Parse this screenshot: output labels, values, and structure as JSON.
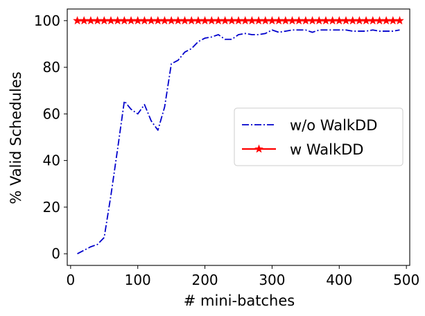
{
  "chart_data": {
    "type": "line",
    "title": "",
    "xlabel": "# mini-batches",
    "ylabel": "% Valid Schedules",
    "xlim": [
      -5,
      505
    ],
    "ylim": [
      -5,
      105
    ],
    "xticks": [
      0,
      100,
      200,
      300,
      400,
      500
    ],
    "yticks": [
      0,
      20,
      40,
      60,
      80,
      100
    ],
    "grid": false,
    "legend_position": "center-right",
    "series": [
      {
        "name": "w/o WalkDD",
        "color": "#0000cc",
        "line_style": "dash-dot",
        "marker": "none",
        "x": [
          10,
          20,
          30,
          40,
          50,
          60,
          70,
          80,
          90,
          100,
          110,
          120,
          130,
          140,
          150,
          160,
          170,
          180,
          190,
          200,
          210,
          220,
          230,
          240,
          250,
          260,
          270,
          280,
          290,
          300,
          310,
          320,
          330,
          340,
          350,
          360,
          370,
          380,
          390,
          400,
          410,
          420,
          430,
          440,
          450,
          460,
          470,
          480,
          490
        ],
        "y": [
          0,
          1.5,
          3,
          4,
          7,
          25,
          45,
          65.5,
          62,
          60,
          64,
          57,
          53,
          63,
          81.5,
          83,
          86.5,
          88,
          91,
          92.5,
          93,
          94,
          92,
          92,
          94,
          94.5,
          94,
          94,
          94.5,
          96,
          95,
          95.5,
          96,
          96,
          96,
          95,
          96,
          96,
          96,
          96,
          96,
          95.5,
          95.5,
          95.5,
          96,
          95.5,
          95.5,
          95.5,
          96
        ]
      },
      {
        "name": "w WalkDD",
        "color": "#ff0000",
        "line_style": "solid",
        "marker": "star",
        "x": [
          10,
          20,
          30,
          40,
          50,
          60,
          70,
          80,
          90,
          100,
          110,
          120,
          130,
          140,
          150,
          160,
          170,
          180,
          190,
          200,
          210,
          220,
          230,
          240,
          250,
          260,
          270,
          280,
          290,
          300,
          310,
          320,
          330,
          340,
          350,
          360,
          370,
          380,
          390,
          400,
          410,
          420,
          430,
          440,
          450,
          460,
          470,
          480,
          490
        ],
        "y": [
          100,
          100,
          100,
          100,
          100,
          100,
          100,
          100,
          100,
          100,
          100,
          100,
          100,
          100,
          100,
          100,
          100,
          100,
          100,
          100,
          100,
          100,
          100,
          100,
          100,
          100,
          100,
          100,
          100,
          100,
          100,
          100,
          100,
          100,
          100,
          100,
          100,
          100,
          100,
          100,
          100,
          100,
          100,
          100,
          100,
          100,
          100,
          100,
          100
        ]
      }
    ]
  }
}
